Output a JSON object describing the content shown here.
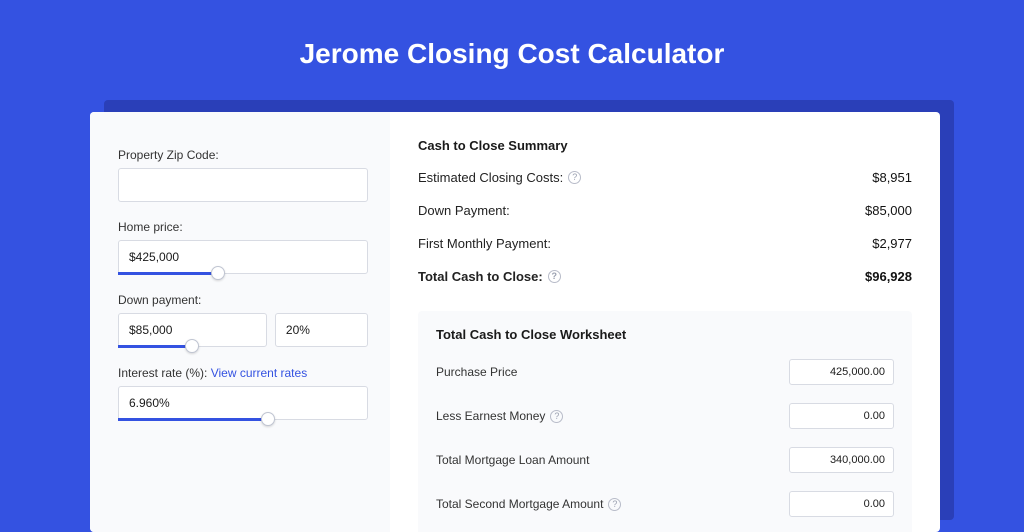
{
  "colors": {
    "page_bg": "#3452e1",
    "card_bg": "#ffffff",
    "panel_bg": "#f9fafc",
    "shadow_bg": "#2a3fb8",
    "accent": "#3452e1",
    "border": "#d8dbe3",
    "text": "#1a1a1a"
  },
  "title": "Jerome Closing Cost Calculator",
  "form": {
    "zip": {
      "label": "Property Zip Code:",
      "value": ""
    },
    "home_price": {
      "label": "Home price:",
      "value": "$425,000",
      "slider_pct": 40
    },
    "down_payment": {
      "label": "Down payment:",
      "value": "$85,000",
      "pct_value": "20%",
      "slider_pct": 50
    },
    "interest_rate": {
      "label_prefix": "Interest rate (%): ",
      "link_text": "View current rates",
      "value": "6.960%",
      "slider_pct": 60
    }
  },
  "summary": {
    "title": "Cash to Close Summary",
    "rows": [
      {
        "label": "Estimated Closing Costs:",
        "has_help": true,
        "value": "$8,951",
        "bold": false
      },
      {
        "label": "Down Payment:",
        "has_help": false,
        "value": "$85,000",
        "bold": false
      },
      {
        "label": "First Monthly Payment:",
        "has_help": false,
        "value": "$2,977",
        "bold": false
      },
      {
        "label": "Total Cash to Close:",
        "has_help": true,
        "value": "$96,928",
        "bold": true
      }
    ]
  },
  "worksheet": {
    "title": "Total Cash to Close Worksheet",
    "rows": [
      {
        "label": "Purchase Price",
        "has_help": false,
        "value": "425,000.00"
      },
      {
        "label": "Less Earnest Money",
        "has_help": true,
        "value": "0.00"
      },
      {
        "label": "Total Mortgage Loan Amount",
        "has_help": false,
        "value": "340,000.00"
      },
      {
        "label": "Total Second Mortgage Amount",
        "has_help": true,
        "value": "0.00"
      }
    ]
  }
}
